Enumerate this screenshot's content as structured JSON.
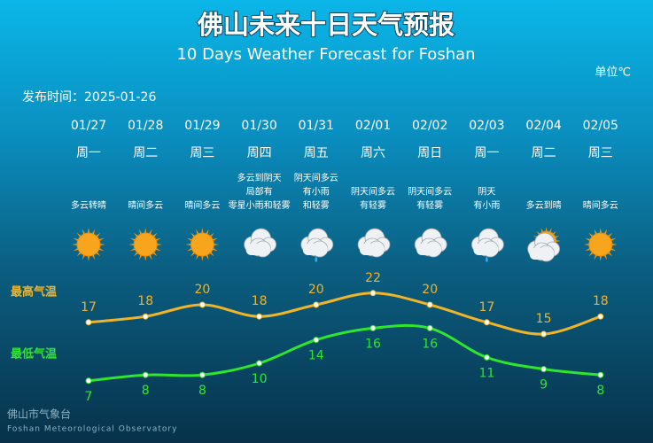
{
  "header": {
    "title": "佛山未来十日天气预报",
    "subtitle": "10 Days Weather Forecast for Foshan",
    "unit": "单位℃",
    "published": "发布时间：2025-01-26"
  },
  "footer": {
    "name": "佛山市气象台",
    "name_en": "Foshan Meteorological Observatory"
  },
  "chart_data": {
    "type": "line",
    "categories": [
      "01/27",
      "01/28",
      "01/29",
      "01/30",
      "01/31",
      "02/01",
      "02/02",
      "02/03",
      "02/04",
      "02/05"
    ],
    "weekdays": [
      "周一",
      "周二",
      "周三",
      "周四",
      "周五",
      "周六",
      "周日",
      "周一",
      "周二",
      "周三"
    ],
    "conditions": [
      [
        "多云转晴"
      ],
      [
        "晴间多云"
      ],
      [
        "晴间多云"
      ],
      [
        "多云到阴天",
        "局部有",
        "零星小雨和轻雾"
      ],
      [
        "阴天间多云",
        "有小雨",
        "和轻雾"
      ],
      [
        "阴天间多云",
        "有轻雾"
      ],
      [
        "阴天间多云",
        "有轻雾"
      ],
      [
        "阴天",
        "有小雨"
      ],
      [
        "多云到晴"
      ],
      [
        "晴间多云"
      ]
    ],
    "series": [
      {
        "name": "最高气温",
        "color": "#f0b429",
        "values": [
          17,
          18,
          20,
          18,
          20,
          22,
          20,
          17,
          15,
          18
        ]
      },
      {
        "name": "最低气温",
        "color": "#2ee62e",
        "values": [
          7,
          8,
          8,
          10,
          14,
          16,
          16,
          11,
          9,
          8
        ]
      }
    ]
  }
}
